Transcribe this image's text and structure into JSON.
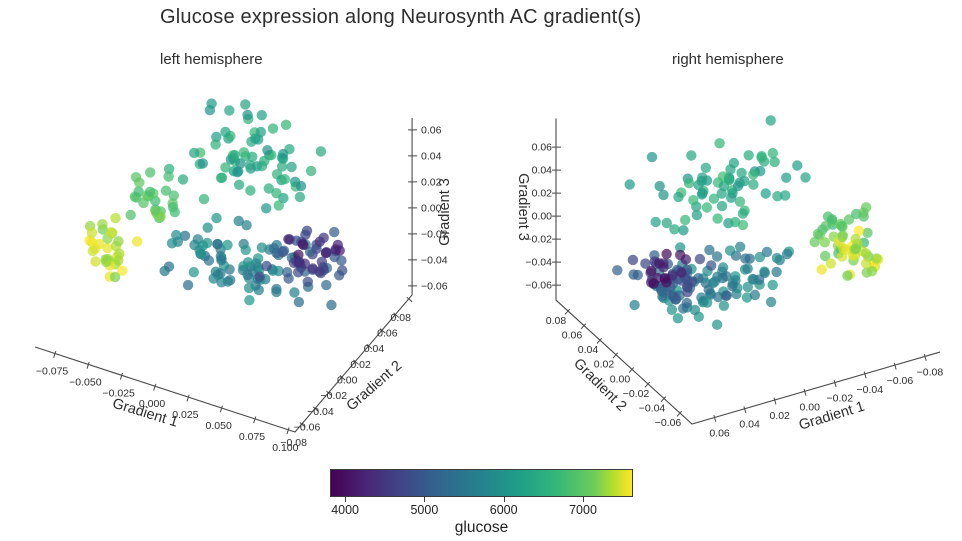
{
  "title": "Glucose expression along Neurosynth AC gradient(s)",
  "chart_data": {
    "type": "scatter",
    "projection": "3d",
    "grid": false,
    "legend": "colorbar-bottom-center",
    "colormap": {
      "name": "viridis",
      "stops": [
        [
          0.0,
          "#440154"
        ],
        [
          0.125,
          "#482878"
        ],
        [
          0.25,
          "#3e4a89"
        ],
        [
          0.375,
          "#31688e"
        ],
        [
          0.5,
          "#26828e"
        ],
        [
          0.625,
          "#1f9e89"
        ],
        [
          0.75,
          "#35b779"
        ],
        [
          0.875,
          "#6dcd59"
        ],
        [
          0.9375,
          "#b4de2c"
        ],
        [
          1.0,
          "#fde725"
        ]
      ]
    },
    "colorbar": {
      "label": "glucose",
      "vmin": 3810,
      "vmax": 7630,
      "tick_values": [
        4000,
        5000,
        6000,
        7000
      ],
      "tick_labels": [
        "4000",
        "5000",
        "6000",
        "7000"
      ]
    },
    "panels": [
      {
        "id": "left",
        "subtitle": "left hemisphere",
        "axes": {
          "x": {
            "label": "Gradient 1",
            "range": [
              -0.09,
              0.105
            ],
            "tick_values": [
              -0.075,
              -0.05,
              -0.025,
              0.0,
              0.025,
              0.05,
              0.075,
              0.1
            ],
            "tick_labels": [
              "−0.075",
              "−0.050",
              "−0.025",
              "0.000",
              "0.025",
              "0.050",
              "0.075",
              "0.100"
            ]
          },
          "y": {
            "label": "Gradient 2",
            "range": [
              -0.09,
              0.085
            ],
            "tick_values": [
              -0.08,
              -0.06,
              -0.04,
              -0.02,
              0.0,
              0.02,
              0.04,
              0.06,
              0.08
            ],
            "tick_labels": [
              "−0.08",
              "−0.06",
              "−0.04",
              "−0.02",
              "0.00",
              "0.02",
              "0.04",
              "0.06",
              "0.08"
            ]
          },
          "z": {
            "label": "Gradient 3",
            "range": [
              -0.067,
              0.069
            ],
            "tick_values": [
              -0.06,
              -0.04,
              -0.02,
              0.0,
              0.02,
              0.04,
              0.06
            ],
            "tick_labels": [
              "−0.06",
              "−0.04",
              "−0.02",
              "0.00",
              "0.02",
              "0.04",
              "0.06"
            ]
          }
        },
        "clusters": [
          {
            "name": "upper-green-fan",
            "n": 72,
            "center": [
              0.01,
              0.034,
              0.036
            ],
            "spread": [
              0.048,
              0.032,
              0.022
            ],
            "glucose": [
              6000,
              6800
            ]
          },
          {
            "name": "teal-mid-band",
            "n": 72,
            "center": [
              0.006,
              0.016,
              -0.034
            ],
            "spread": [
              0.044,
              0.024,
              0.018
            ],
            "glucose": [
              5350,
              6150
            ]
          },
          {
            "name": "lime-upper-left",
            "n": 24,
            "center": [
              -0.044,
              -0.016,
              0.016
            ],
            "spread": [
              0.016,
              0.016,
              0.02
            ],
            "glucose": [
              6700,
              7250
            ]
          },
          {
            "name": "steel-blue-low",
            "n": 40,
            "center": [
              0.05,
              0.036,
              -0.032
            ],
            "spread": [
              0.024,
              0.02,
              0.016
            ],
            "glucose": [
              4600,
              5400
            ]
          },
          {
            "name": "purple-lowest",
            "n": 16,
            "center": [
              0.052,
              0.046,
              -0.03
            ],
            "spread": [
              0.015,
              0.013,
              0.013
            ],
            "glucose": [
              3880,
              4550
            ]
          },
          {
            "name": "yellow-highest",
            "n": 30,
            "center": [
              -0.058,
              -0.04,
              -0.012
            ],
            "spread": [
              0.017,
              0.014,
              0.02
            ],
            "glucose": [
              7150,
              7640
            ]
          }
        ]
      },
      {
        "id": "right",
        "subtitle": "right hemisphere",
        "axes": {
          "x": {
            "label": "Gradient 1",
            "range": [
              -0.09,
              0.075
            ],
            "tick_values": [
              0.06,
              0.04,
              0.02,
              0.0,
              -0.02,
              -0.04,
              -0.06,
              -0.08
            ],
            "tick_labels": [
              "0.06",
              "0.04",
              "0.02",
              "0.00",
              "−0.02",
              "−0.04",
              "−0.06",
              "−0.08"
            ]
          },
          "y": {
            "label": "Gradient 2",
            "range": [
              -0.075,
              0.095
            ],
            "tick_values": [
              0.08,
              0.06,
              0.04,
              0.02,
              0.0,
              -0.02,
              -0.04,
              -0.06
            ],
            "tick_labels": [
              "0.08",
              "0.06",
              "0.04",
              "0.02",
              "0.00",
              "−0.02",
              "−0.04",
              "−0.06"
            ]
          },
          "z": {
            "label": "Gradient 3",
            "range": [
              -0.073,
              0.085
            ],
            "tick_values": [
              -0.06,
              -0.04,
              -0.02,
              0.0,
              0.02,
              0.04,
              0.06
            ],
            "tick_labels": [
              "−0.06",
              "−0.04",
              "−0.02",
              "0.00",
              "0.02",
              "0.04",
              "0.06"
            ]
          }
        },
        "clusters": [
          {
            "name": "upper-green-fan",
            "n": 70,
            "center": [
              0.0,
              0.034,
              0.036
            ],
            "spread": [
              0.052,
              0.032,
              0.022
            ],
            "glucose": [
              6000,
              6800
            ]
          },
          {
            "name": "teal-mid-band",
            "n": 72,
            "center": [
              0.01,
              0.016,
              -0.034
            ],
            "spread": [
              0.044,
              0.024,
              0.018
            ],
            "glucose": [
              5350,
              6150
            ]
          },
          {
            "name": "lime-right-edge",
            "n": 26,
            "center": [
              -0.055,
              -0.02,
              0.012
            ],
            "spread": [
              0.018,
              0.016,
              0.02
            ],
            "glucose": [
              6650,
              7250
            ]
          },
          {
            "name": "steel-blue-low",
            "n": 42,
            "center": [
              0.03,
              0.034,
              -0.034
            ],
            "spread": [
              0.024,
              0.02,
              0.016
            ],
            "glucose": [
              4600,
              5400
            ]
          },
          {
            "name": "purple-lowest",
            "n": 16,
            "center": [
              0.03,
              0.044,
              -0.03
            ],
            "spread": [
              0.014,
              0.013,
              0.013
            ],
            "glucose": [
              3880,
              4550
            ]
          },
          {
            "name": "yellow-highest",
            "n": 28,
            "center": [
              -0.062,
              -0.026,
              -0.012
            ],
            "spread": [
              0.016,
              0.014,
              0.02
            ],
            "glucose": [
              7150,
              7640
            ]
          },
          {
            "name": "isolated-outlier",
            "n": 1,
            "center": [
              0.055,
              0.056,
              -0.03
            ],
            "spread": [
              0.0,
              0.0,
              0.0
            ],
            "glucose": [
              5150,
              5150
            ]
          }
        ]
      }
    ]
  }
}
